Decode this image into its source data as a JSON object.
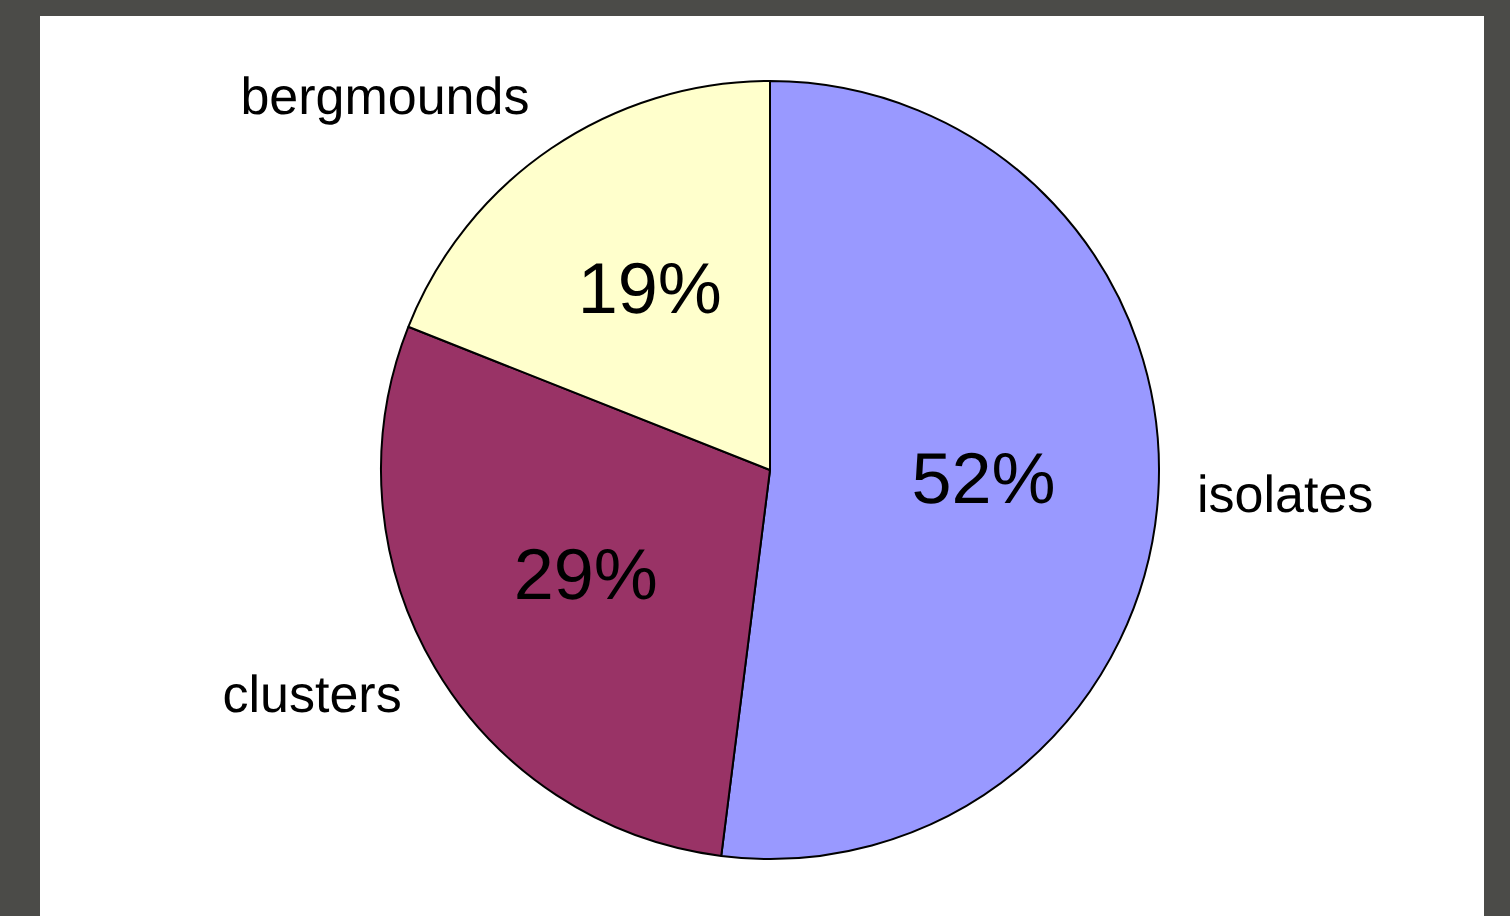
{
  "chart_data": {
    "type": "pie",
    "categories": [
      "isolates",
      "clusters",
      "bergmounds"
    ],
    "values": [
      52,
      29,
      19
    ],
    "colors": [
      "#9999ff",
      "#993366",
      "#ffffcc"
    ],
    "value_labels": [
      "52%",
      "29%",
      "19%"
    ]
  }
}
